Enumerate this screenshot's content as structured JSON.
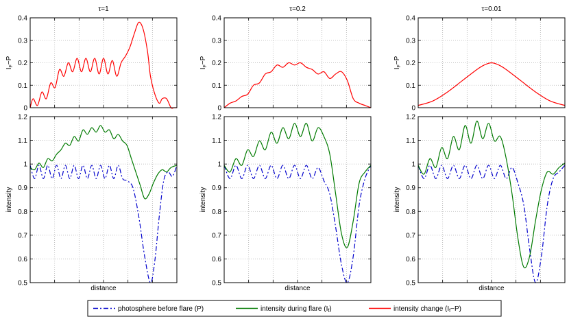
{
  "colors": {
    "photosphere": "#0000cc",
    "flare": "#007a00",
    "change": "#ff0000",
    "axis": "#000000",
    "grid": "#b0b0b0"
  },
  "legend": {
    "photosphere": "photosphere before flare (P)",
    "flare": {
      "base": "intensity during flare (I",
      "sub": "f",
      "tail": ")"
    },
    "change": {
      "base": "intensity change (I",
      "sub": "f",
      "tail": "−P)"
    }
  },
  "chart_data": [
    {
      "type": "line",
      "panel": "top",
      "column": 0,
      "title": "τ=1",
      "ylabel": {
        "base": "I",
        "sub": "F",
        "tail": "−P"
      },
      "ylim": [
        0,
        0.4
      ],
      "yticks": [
        "0",
        "0.1",
        "0.2",
        "0.3",
        "0.4"
      ],
      "grid": true,
      "series": [
        {
          "color": "change",
          "x": [
            0,
            0.02,
            0.05,
            0.08,
            0.11,
            0.14,
            0.17,
            0.2,
            0.23,
            0.26,
            0.29,
            0.32,
            0.35,
            0.38,
            0.41,
            0.44,
            0.47,
            0.5,
            0.53,
            0.56,
            0.59,
            0.62,
            0.65,
            0.68,
            0.71,
            0.74,
            0.77,
            0.8,
            0.82,
            0.85,
            0.88,
            0.9,
            0.93,
            0.96,
            0.98,
            1.0
          ],
          "y": [
            0.0,
            0.04,
            0.01,
            0.07,
            0.04,
            0.11,
            0.09,
            0.17,
            0.14,
            0.2,
            0.16,
            0.22,
            0.16,
            0.22,
            0.16,
            0.22,
            0.15,
            0.22,
            0.15,
            0.21,
            0.14,
            0.2,
            0.23,
            0.27,
            0.33,
            0.38,
            0.35,
            0.25,
            0.14,
            0.06,
            0.02,
            0.04,
            0.04,
            0.0,
            0.0,
            0.0
          ]
        }
      ]
    },
    {
      "type": "line",
      "panel": "top",
      "column": 1,
      "title": "τ=0.2",
      "ylabel": {
        "base": "I",
        "sub": "F",
        "tail": "−P"
      },
      "ylim": [
        0,
        0.4
      ],
      "yticks": [
        "0",
        "0.1",
        "0.2",
        "0.3",
        "0.4"
      ],
      "grid": true,
      "series": [
        {
          "color": "change",
          "x": [
            0,
            0.04,
            0.08,
            0.12,
            0.16,
            0.2,
            0.24,
            0.28,
            0.32,
            0.36,
            0.4,
            0.44,
            0.48,
            0.52,
            0.56,
            0.6,
            0.64,
            0.68,
            0.72,
            0.76,
            0.8,
            0.84,
            0.88,
            0.92,
            0.96,
            1.0
          ],
          "y": [
            0.0,
            0.02,
            0.03,
            0.05,
            0.06,
            0.1,
            0.11,
            0.15,
            0.16,
            0.19,
            0.18,
            0.2,
            0.19,
            0.2,
            0.18,
            0.17,
            0.15,
            0.16,
            0.13,
            0.15,
            0.16,
            0.12,
            0.04,
            0.02,
            0.01,
            0.0
          ]
        }
      ]
    },
    {
      "type": "line",
      "panel": "top",
      "column": 2,
      "title": "τ=0.01",
      "ylabel": {
        "base": "I",
        "sub": "F",
        "tail": "−P"
      },
      "ylim": [
        0,
        0.4
      ],
      "yticks": [
        "0",
        "0.1",
        "0.2",
        "0.3",
        "0.4"
      ],
      "grid": true,
      "series": [
        {
          "color": "change",
          "x": [
            0,
            0.1,
            0.2,
            0.3,
            0.4,
            0.45,
            0.5,
            0.55,
            0.6,
            0.7,
            0.8,
            0.9,
            1.0
          ],
          "y": [
            0.01,
            0.03,
            0.07,
            0.12,
            0.17,
            0.19,
            0.2,
            0.19,
            0.17,
            0.12,
            0.07,
            0.03,
            0.01
          ]
        }
      ]
    },
    {
      "type": "line",
      "panel": "bottom",
      "column": 0,
      "xlabel": "distance",
      "ylabel": "intensity",
      "ylim": [
        0.5,
        1.25
      ],
      "yticks": [
        "0.5",
        "0.6",
        "0.7",
        "0.8",
        "0.9",
        "1",
        "1.1",
        "1.2"
      ],
      "grid": true,
      "series": [
        {
          "color": "photosphere",
          "style": "dashdot",
          "x": [
            0,
            0.03,
            0.06,
            0.09,
            0.12,
            0.15,
            0.18,
            0.21,
            0.24,
            0.27,
            0.3,
            0.33,
            0.36,
            0.39,
            0.42,
            0.45,
            0.48,
            0.51,
            0.54,
            0.57,
            0.6,
            0.63,
            0.66,
            0.7,
            0.74,
            0.78,
            0.82,
            0.85,
            0.88,
            0.91,
            0.94,
            0.97,
            1.0
          ],
          "y": [
            1.03,
            0.97,
            1.03,
            0.97,
            1.03,
            0.97,
            1.03,
            0.97,
            1.03,
            0.97,
            1.03,
            0.97,
            1.03,
            0.97,
            1.03,
            0.97,
            1.03,
            0.97,
            1.03,
            0.97,
            1.03,
            0.97,
            0.96,
            0.93,
            0.8,
            0.62,
            0.5,
            0.6,
            0.8,
            0.96,
            1.0,
            0.98,
            1.03
          ]
        },
        {
          "color": "flare",
          "x": [
            0,
            0.03,
            0.06,
            0.09,
            0.12,
            0.15,
            0.18,
            0.21,
            0.24,
            0.27,
            0.3,
            0.33,
            0.36,
            0.39,
            0.42,
            0.45,
            0.48,
            0.51,
            0.54,
            0.57,
            0.6,
            0.63,
            0.66,
            0.69,
            0.72,
            0.75,
            0.78,
            0.81,
            0.84,
            0.87,
            0.9,
            0.93,
            0.96,
            1.0
          ],
          "y": [
            1.02,
            1.01,
            1.04,
            1.02,
            1.06,
            1.05,
            1.08,
            1.1,
            1.13,
            1.12,
            1.16,
            1.14,
            1.19,
            1.17,
            1.2,
            1.18,
            1.21,
            1.18,
            1.19,
            1.15,
            1.17,
            1.14,
            1.12,
            1.06,
            1.0,
            0.94,
            0.88,
            0.9,
            0.95,
            0.99,
            1.01,
            1.0,
            1.02,
            1.03
          ]
        }
      ]
    },
    {
      "type": "line",
      "panel": "bottom",
      "column": 1,
      "xlabel": "distance",
      "ylabel": "intensity",
      "ylim": [
        0.5,
        1.25
      ],
      "yticks": [
        "0.5",
        "0.6",
        "0.7",
        "0.8",
        "0.9",
        "1",
        "1.1",
        "1.2"
      ],
      "grid": true,
      "series": [
        {
          "color": "photosphere",
          "style": "dashdot",
          "x": [
            0,
            0.04,
            0.08,
            0.12,
            0.16,
            0.2,
            0.24,
            0.28,
            0.32,
            0.36,
            0.4,
            0.44,
            0.48,
            0.52,
            0.56,
            0.6,
            0.64,
            0.68,
            0.72,
            0.76,
            0.8,
            0.84,
            0.88,
            0.92,
            0.96,
            1.0
          ],
          "y": [
            1.03,
            0.97,
            1.03,
            0.97,
            1.03,
            0.97,
            1.03,
            0.97,
            1.03,
            0.97,
            1.03,
            0.97,
            1.03,
            0.97,
            1.03,
            0.97,
            1.02,
            0.96,
            0.9,
            0.75,
            0.58,
            0.5,
            0.62,
            0.85,
            0.97,
            1.03
          ]
        },
        {
          "color": "flare",
          "x": [
            0,
            0.04,
            0.08,
            0.12,
            0.16,
            0.2,
            0.24,
            0.28,
            0.32,
            0.36,
            0.4,
            0.44,
            0.48,
            0.52,
            0.56,
            0.6,
            0.64,
            0.68,
            0.72,
            0.76,
            0.8,
            0.84,
            0.88,
            0.92,
            0.96,
            1.0
          ],
          "y": [
            1.03,
            1.0,
            1.06,
            1.03,
            1.1,
            1.07,
            1.14,
            1.1,
            1.18,
            1.13,
            1.2,
            1.15,
            1.22,
            1.16,
            1.22,
            1.14,
            1.2,
            1.16,
            1.08,
            0.9,
            0.72,
            0.66,
            0.78,
            0.95,
            1.0,
            1.03
          ]
        }
      ]
    },
    {
      "type": "line",
      "panel": "bottom",
      "column": 2,
      "xlabel": "distance",
      "ylabel": "intensity",
      "ylim": [
        0.5,
        1.25
      ],
      "yticks": [
        "0.5",
        "0.6",
        "0.7",
        "0.8",
        "0.9",
        "1",
        "1.1",
        "1.2"
      ],
      "grid": true,
      "series": [
        {
          "color": "photosphere",
          "style": "dashdot",
          "x": [
            0,
            0.04,
            0.08,
            0.12,
            0.16,
            0.2,
            0.24,
            0.28,
            0.32,
            0.36,
            0.4,
            0.44,
            0.48,
            0.52,
            0.56,
            0.6,
            0.64,
            0.68,
            0.72,
            0.76,
            0.8,
            0.84,
            0.88,
            0.92,
            0.96,
            1.0
          ],
          "y": [
            1.03,
            0.97,
            1.03,
            0.97,
            1.03,
            0.97,
            1.03,
            0.97,
            1.03,
            0.97,
            1.03,
            0.97,
            1.03,
            0.97,
            1.03,
            0.97,
            1.02,
            0.95,
            0.85,
            0.65,
            0.5,
            0.62,
            0.85,
            0.97,
            1.0,
            1.03
          ]
        },
        {
          "color": "flare",
          "x": [
            0,
            0.04,
            0.08,
            0.12,
            0.16,
            0.2,
            0.24,
            0.28,
            0.32,
            0.36,
            0.4,
            0.44,
            0.48,
            0.52,
            0.56,
            0.6,
            0.64,
            0.68,
            0.72,
            0.76,
            0.8,
            0.84,
            0.88,
            0.92,
            0.96,
            1.0
          ],
          "y": [
            1.03,
            0.99,
            1.06,
            1.02,
            1.11,
            1.06,
            1.16,
            1.1,
            1.21,
            1.13,
            1.23,
            1.15,
            1.22,
            1.14,
            1.16,
            1.06,
            0.9,
            0.7,
            0.57,
            0.62,
            0.78,
            0.92,
            1.0,
            0.99,
            1.02,
            1.04
          ]
        }
      ]
    }
  ]
}
